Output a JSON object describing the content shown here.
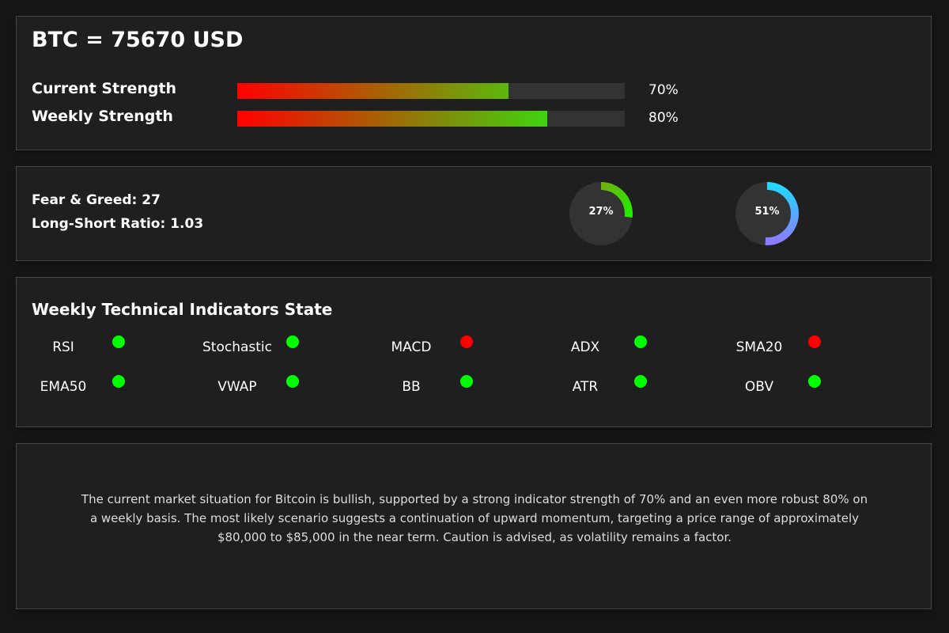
{
  "header": {
    "title": "BTC = 75670 USD"
  },
  "strength": {
    "current": {
      "label": "Current Strength",
      "percent_text": "70%",
      "value": 70,
      "color_start": "#ff0000",
      "color_end": "#5cb80c"
    },
    "weekly": {
      "label": "Weekly Strength",
      "percent_text": "80%",
      "value": 80,
      "color_start": "#ff0000",
      "color_end": "#3fd30f"
    }
  },
  "sentiment": {
    "fear_greed_text": "Fear & Greed: 27",
    "long_short_text": "Long-Short Ratio: 1.03",
    "gauges": [
      {
        "label": "27%",
        "value": 27,
        "color_start": "#6fb00f",
        "color_end": "#22ee00"
      },
      {
        "label": "51%",
        "value": 51,
        "color_start": "#22d8ff",
        "color_end": "#8b7cff"
      }
    ]
  },
  "indicators": {
    "title": "Weekly Technical Indicators State",
    "status_colors": {
      "bullish": "#00ff00",
      "bearish": "#ff0000"
    },
    "rows": [
      [
        {
          "name": "RSI",
          "state": "bullish"
        },
        {
          "name": "Stochastic",
          "state": "bullish"
        },
        {
          "name": "MACD",
          "state": "bearish"
        },
        {
          "name": "ADX",
          "state": "bullish"
        },
        {
          "name": "SMA20",
          "state": "bearish"
        }
      ],
      [
        {
          "name": "EMA50",
          "state": "bullish"
        },
        {
          "name": "VWAP",
          "state": "bullish"
        },
        {
          "name": "BB",
          "state": "bullish"
        },
        {
          "name": "ATR",
          "state": "bullish"
        },
        {
          "name": "OBV",
          "state": "bullish"
        }
      ]
    ]
  },
  "summary": {
    "text": "The current market situation for Bitcoin is bullish, supported by a strong indicator strength of 70% and an even more robust 80% on a weekly basis. The most likely scenario suggests a continuation of upward momentum, targeting a price range of approximately $80,000 to $85,000 in the near term. Caution is advised, as volatility remains a factor."
  }
}
